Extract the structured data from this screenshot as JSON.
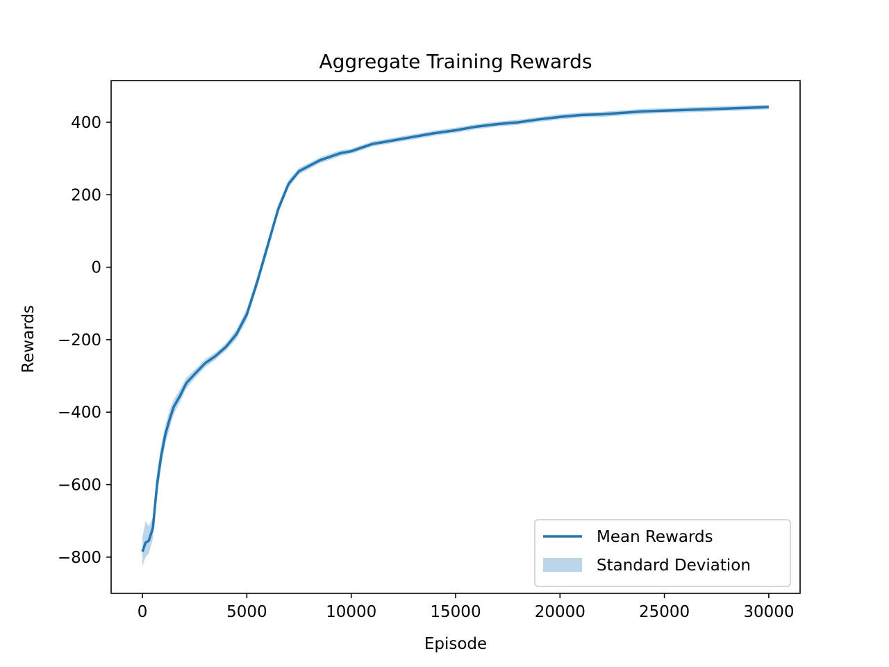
{
  "chart_data": {
    "type": "line",
    "title": "Aggregate Training Rewards",
    "xlabel": "Episode",
    "ylabel": "Rewards",
    "xlim": [
      -1500,
      31500
    ],
    "ylim": [
      -900,
      515
    ],
    "x_ticks": [
      0,
      5000,
      10000,
      15000,
      20000,
      25000,
      30000
    ],
    "x_tick_labels": [
      "0",
      "5000",
      "10000",
      "15000",
      "20000",
      "25000",
      "30000"
    ],
    "y_ticks": [
      -800,
      -600,
      -400,
      -200,
      0,
      200,
      400
    ],
    "y_tick_labels": [
      "−800",
      "−600",
      "−400",
      "−200",
      "0",
      "200",
      "400"
    ],
    "grid": false,
    "legend_position": "lower-right",
    "colors": {
      "line": "#1f77b4",
      "band": "#1f77b4"
    },
    "series": [
      {
        "name": "Mean Rewards",
        "kind": "line",
        "x": [
          0,
          150,
          300,
          500,
          700,
          900,
          1100,
          1300,
          1500,
          1800,
          2100,
          2500,
          3000,
          3500,
          4000,
          4500,
          5000,
          5500,
          6000,
          6500,
          7000,
          7500,
          8000,
          8500,
          9000,
          9500,
          10000,
          11000,
          12000,
          13000,
          14000,
          15000,
          16000,
          17000,
          18000,
          19000,
          20000,
          21000,
          22000,
          23000,
          24000,
          25000,
          26000,
          27000,
          28000,
          29000,
          30000
        ],
        "y": [
          -785,
          -760,
          -755,
          -720,
          -600,
          -520,
          -460,
          -420,
          -385,
          -355,
          -320,
          -295,
          -265,
          -245,
          -220,
          -185,
          -130,
          -40,
          60,
          160,
          230,
          265,
          280,
          295,
          305,
          315,
          320,
          340,
          350,
          360,
          370,
          378,
          388,
          395,
          400,
          408,
          415,
          420,
          422,
          426,
          430,
          432,
          434,
          436,
          438,
          440,
          442
        ]
      },
      {
        "name": "Standard Deviation",
        "kind": "band",
        "x": [
          0,
          150,
          300,
          500,
          700,
          900,
          1100,
          1300,
          1500,
          1800,
          2100,
          2500,
          3000,
          3500,
          4000,
          4500,
          5000,
          5500,
          6000,
          6500,
          7000,
          7500,
          8000,
          8500,
          9000,
          9500,
          10000,
          11000,
          12000,
          13000,
          14000,
          15000,
          16000,
          17000,
          18000,
          19000,
          20000,
          21000,
          22000,
          23000,
          24000,
          25000,
          26000,
          27000,
          28000,
          29000,
          30000
        ],
        "lower": [
          -825,
          -800,
          -790,
          -750,
          -635,
          -550,
          -485,
          -445,
          -405,
          -372,
          -335,
          -307,
          -276,
          -255,
          -230,
          -198,
          -145,
          -55,
          45,
          147,
          220,
          256,
          272,
          287,
          297,
          307,
          313,
          333,
          343,
          353,
          363,
          371,
          381,
          388,
          393,
          401,
          408,
          413,
          415,
          419,
          423,
          425,
          427,
          429,
          431,
          433,
          436
        ],
        "upper": [
          -745,
          -700,
          -715,
          -690,
          -565,
          -490,
          -435,
          -395,
          -365,
          -338,
          -305,
          -283,
          -254,
          -235,
          -210,
          -172,
          -115,
          -25,
          75,
          173,
          240,
          274,
          288,
          303,
          313,
          323,
          327,
          347,
          357,
          367,
          377,
          385,
          395,
          402,
          407,
          415,
          422,
          427,
          429,
          433,
          437,
          439,
          441,
          443,
          445,
          447,
          448
        ]
      }
    ]
  }
}
